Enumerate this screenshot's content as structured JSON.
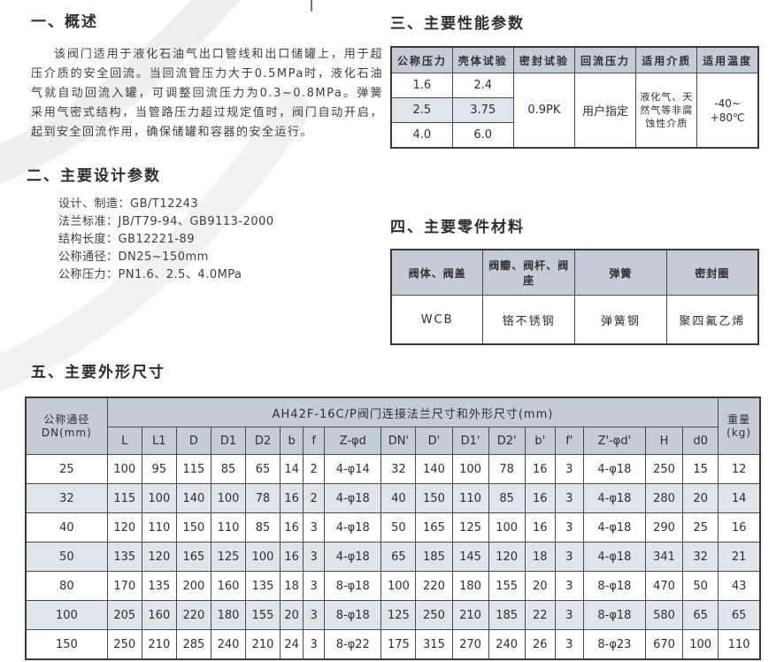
{
  "palette": {
    "table_header_bg": "#c4cdd7",
    "table_alt_row_bg": "#dde4ea",
    "border_color": "#3a3a3a",
    "text_color": "#2f2f2f"
  },
  "s1": {
    "title": "一、概述",
    "paragraph": "该阀门适用于液化石油气出口管线和出口储罐上，用于超压介质的安全回流。当回流管压力大于0.5MPa时，液化石油气就自动回流入罐，可调整回流压力为0.3~0.8MPa。弹簧采用气密式结构，当管路压力超过规定值时，阀门自动开启，起到安全回流作用，确保储罐和容器的安全运行。"
  },
  "s2": {
    "title": "二、主要设计参数",
    "items": [
      "设计、制造：GB/T12243",
      "法兰标准：JB/T79-94、GB9113-2000",
      "结构长度：GB12221-89",
      "公称通径：DN25~150mm",
      "公称压力：PN1.6、2.5、4.0MPa"
    ]
  },
  "s3": {
    "title": "三、主要性能参数",
    "headers": [
      "公称压力",
      "壳体试验",
      "密封试验",
      "回流压力",
      "适用介质",
      "适用温度"
    ],
    "rows": [
      [
        "1.6",
        "2.4"
      ],
      [
        "2.5",
        "3.75"
      ],
      [
        "4.0",
        "6.0"
      ]
    ],
    "seal_test": "0.9PK",
    "reflux_pressure": "用户指定",
    "medium": "液化气、天然气等非腐蚀性介质",
    "temperature_line1": "-40~",
    "temperature_line2": "+80℃"
  },
  "s4": {
    "title": "四、主要零件材料",
    "headers": [
      "阀体、阀盖",
      "阀瓣、阀杆、阀座",
      "弹簧",
      "密封圈"
    ],
    "values": [
      "WCB",
      "铬不锈钢",
      "弹簧钢",
      "聚四氟乙烯"
    ]
  },
  "s5": {
    "title": "五、主要外形尺寸",
    "corner_header": "公称通径",
    "corner_sub": "DN(mm)",
    "span_header": "AH42F-16C/P阀门连接法兰尺寸和外形尺寸(mm)",
    "weight_header": "重量",
    "weight_sub": "(kg)",
    "columns": [
      "L",
      "L1",
      "D",
      "D1",
      "D2",
      "b",
      "f",
      "Z-φd",
      "DN'",
      "D'",
      "D1'",
      "D2'",
      "b'",
      "f'",
      "Z'-φd'",
      "H",
      "d0"
    ],
    "rows": [
      [
        "25",
        "100",
        "95",
        "115",
        "85",
        "65",
        "14",
        "2",
        "4-φ14",
        "32",
        "140",
        "100",
        "78",
        "16",
        "3",
        "4-φ18",
        "250",
        "15",
        "12"
      ],
      [
        "32",
        "115",
        "100",
        "140",
        "100",
        "78",
        "16",
        "2",
        "4-φ18",
        "40",
        "150",
        "110",
        "85",
        "16",
        "3",
        "4-φ18",
        "280",
        "20",
        "14"
      ],
      [
        "40",
        "120",
        "110",
        "150",
        "110",
        "85",
        "16",
        "3",
        "4-φ18",
        "50",
        "165",
        "125",
        "100",
        "16",
        "3",
        "4-φ18",
        "290",
        "25",
        "16"
      ],
      [
        "50",
        "135",
        "120",
        "165",
        "125",
        "100",
        "16",
        "3",
        "4-φ18",
        "65",
        "185",
        "145",
        "120",
        "18",
        "3",
        "4-φ18",
        "341",
        "32",
        "21"
      ],
      [
        "80",
        "170",
        "135",
        "200",
        "160",
        "135",
        "18",
        "3",
        "8-φ18",
        "100",
        "220",
        "180",
        "155",
        "20",
        "3",
        "8-φ18",
        "470",
        "50",
        "43"
      ],
      [
        "100",
        "205",
        "160",
        "220",
        "180",
        "155",
        "20",
        "3",
        "8-φ18",
        "125",
        "250",
        "210",
        "185",
        "22",
        "3",
        "8-φ18",
        "580",
        "65",
        "65"
      ],
      [
        "150",
        "250",
        "210",
        "285",
        "240",
        "210",
        "24",
        "3",
        "8-φ22",
        "175",
        "315",
        "270",
        "240",
        "26",
        "3",
        "8-φ23",
        "670",
        "100",
        "110"
      ]
    ]
  }
}
